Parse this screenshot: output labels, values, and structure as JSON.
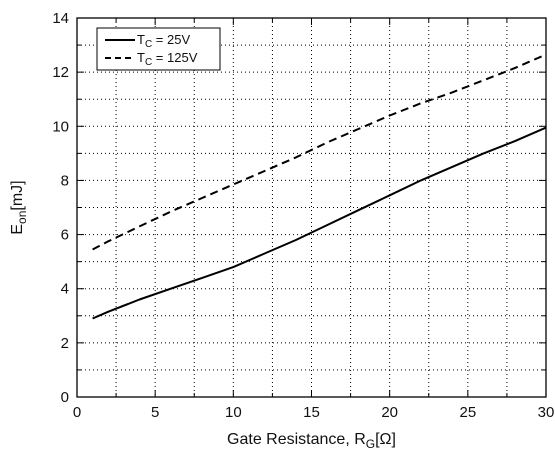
{
  "chart_data": {
    "type": "line",
    "xlabel": {
      "main": "Gate Resistance, R",
      "sub": "G",
      "rest": "[Ω]"
    },
    "ylabel": {
      "main": "E",
      "sub": "on",
      "rest": "[mJ]"
    },
    "xlim": [
      0,
      30
    ],
    "ylim": [
      0,
      14
    ],
    "x_ticks": [
      "0",
      "5",
      "10",
      "15",
      "20",
      "25",
      "30"
    ],
    "y_ticks": [
      "0",
      "2",
      "4",
      "6",
      "8",
      "10",
      "12",
      "14"
    ],
    "grid": true,
    "legend_position": "top-left",
    "series": [
      {
        "name": "T_C = 25V",
        "name_parts": {
          "main": "T",
          "sub": "C",
          "rest": " = 25V"
        },
        "style": "solid",
        "color": "#000000",
        "x": [
          1,
          2,
          4,
          6,
          8,
          10,
          12,
          14,
          16,
          18,
          20,
          22,
          24,
          26,
          28,
          30
        ],
        "y": [
          2.9,
          3.15,
          3.6,
          4.0,
          4.4,
          4.8,
          5.3,
          5.8,
          6.35,
          6.9,
          7.45,
          8.0,
          8.5,
          9.0,
          9.45,
          9.95
        ]
      },
      {
        "name": "T_C = 125V",
        "name_parts": {
          "main": "T",
          "sub": "C",
          "rest": " = 125V"
        },
        "style": "dashed",
        "color": "#000000",
        "x": [
          1,
          2,
          4,
          6,
          8,
          10,
          12,
          14,
          16,
          18,
          20,
          22,
          24,
          26,
          28,
          30
        ],
        "y": [
          5.45,
          5.75,
          6.3,
          6.85,
          7.35,
          7.85,
          8.35,
          8.85,
          9.4,
          9.9,
          10.4,
          10.85,
          11.25,
          11.7,
          12.15,
          12.65
        ]
      }
    ]
  }
}
